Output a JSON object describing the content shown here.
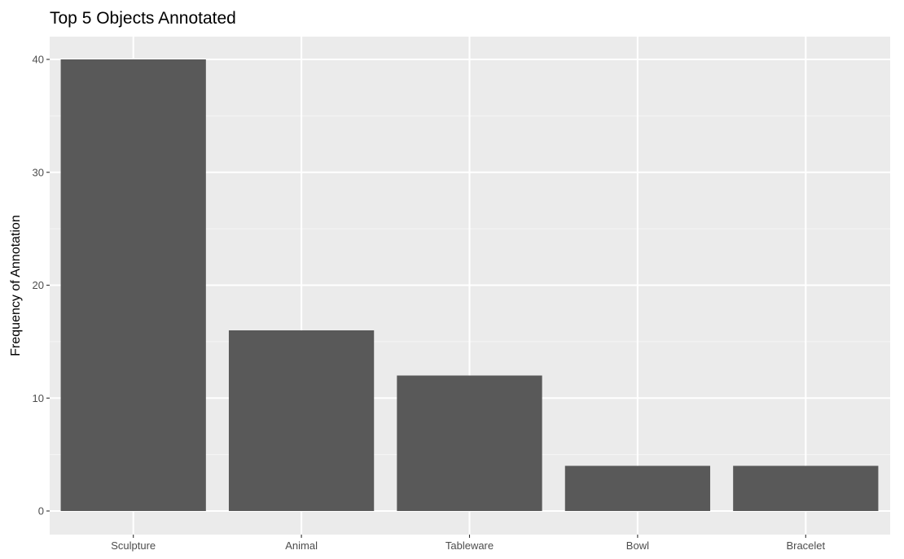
{
  "chart_data": {
    "type": "bar",
    "title": "Top 5 Objects Annotated",
    "xlabel": "",
    "ylabel": "Frequency of Annotation",
    "categories": [
      "Sculpture",
      "Animal",
      "Tableware",
      "Bowl",
      "Bracelet"
    ],
    "values": [
      40,
      16,
      12,
      4,
      4
    ],
    "ylim": [
      0,
      42
    ],
    "yticks": [
      0,
      10,
      20,
      30,
      40
    ],
    "grid": true,
    "legend": "none",
    "colors": {
      "bar": "#595959",
      "panel": "#ebebeb",
      "grid_major": "#ffffff",
      "grid_minor": "#f5f5f5",
      "tick_text": "#4d4d4d",
      "tick_mark": "#333333"
    }
  }
}
